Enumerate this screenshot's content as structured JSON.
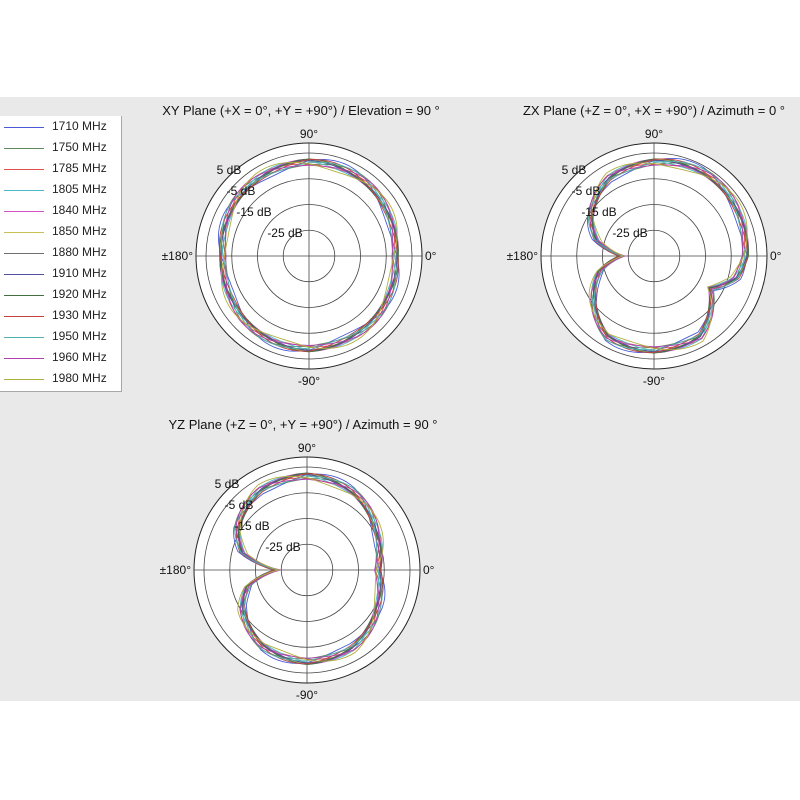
{
  "chart_data": [
    {
      "type": "polar-line",
      "title": "XY Plane (+X = 0°, +Y = +90°) / Elevation = 90 °",
      "angle_labels": {
        "top": "90°",
        "right": "0°",
        "bottom": "-90°",
        "left": "±180°"
      },
      "radial_labels": [
        "5 dB",
        "-5 dB",
        "-15 dB",
        "-25 dB"
      ],
      "rlim": [
        -35,
        5
      ],
      "angles_deg": [
        0,
        30,
        60,
        90,
        120,
        150,
        180,
        210,
        240,
        270,
        300,
        330
      ],
      "gain_db": [
        -1,
        0,
        1,
        2,
        1,
        0,
        -1,
        -0.5,
        0.5,
        1.5,
        0.5,
        -0.5
      ]
    },
    {
      "type": "polar-line",
      "title": "ZX Plane (+Z = 0°, +X = +90°) / Azimuth = 0 °",
      "angle_labels": {
        "top": "90°",
        "right": "0°",
        "bottom": "-90°",
        "left": "±180°"
      },
      "radial_labels": [
        "5 dB",
        "-5 dB",
        "-15 dB",
        "-25 dB"
      ],
      "rlim": [
        -35,
        5
      ],
      "angles_deg": [
        0,
        30,
        60,
        90,
        120,
        150,
        165,
        180,
        195,
        210,
        240,
        270,
        300,
        330,
        345
      ],
      "gain_db": [
        1,
        2,
        2.5,
        2,
        0,
        -7,
        -12,
        -22,
        -13,
        -8,
        1,
        2,
        1,
        -10,
        -2
      ]
    },
    {
      "type": "polar-line",
      "title": "YZ Plane (+Z = 0°, +Y = +90°) / Azimuth = 90 °",
      "angle_labels": {
        "top": "90°",
        "right": "0°",
        "bottom": "-90°",
        "left": "±180°"
      },
      "radial_labels": [
        "5 dB",
        "-5 dB",
        "-15 dB",
        "-25 dB"
      ],
      "rlim": [
        -35,
        5
      ],
      "angles_deg": [
        0,
        30,
        60,
        90,
        120,
        150,
        165,
        180,
        195,
        210,
        240,
        270,
        300,
        330
      ],
      "gain_db": [
        -7,
        -4,
        0,
        2,
        1,
        -4,
        -9,
        -23,
        -11,
        -6,
        -1,
        1,
        0,
        -4
      ]
    }
  ],
  "legend": [
    {
      "label": "1710 MHz",
      "color": "#4a5bd8"
    },
    {
      "label": "1750 MHz",
      "color": "#5e8a5e"
    },
    {
      "label": "1785 MHz",
      "color": "#e05050"
    },
    {
      "label": "1805 MHz",
      "color": "#4ab8c8"
    },
    {
      "label": "1840 MHz",
      "color": "#d050c8"
    },
    {
      "label": "1850 MHz",
      "color": "#c8c050"
    },
    {
      "label": "1880 MHz",
      "color": "#707070"
    },
    {
      "label": "1910 MHz",
      "color": "#5050a0"
    },
    {
      "label": "1920 MHz",
      "color": "#407040"
    },
    {
      "label": "1930 MHz",
      "color": "#c04040"
    },
    {
      "label": "1950 MHz",
      "color": "#50b0b0"
    },
    {
      "label": "1960 MHz",
      "color": "#b040b0"
    },
    {
      "label": "1980 MHz",
      "color": "#b0b040"
    }
  ]
}
